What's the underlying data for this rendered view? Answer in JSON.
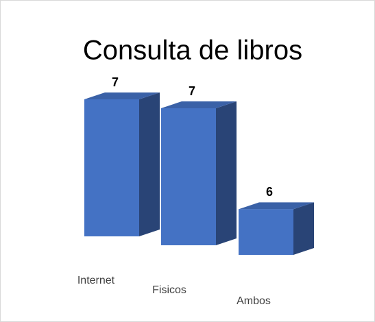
{
  "chart_data": {
    "type": "bar3d",
    "title": "Consulta de libros",
    "categories": [
      "Internet",
      "Fisicos",
      "Ambos"
    ],
    "values": [
      7,
      7,
      6
    ],
    "color": "#4472c4",
    "ylim": [
      5.5,
      7
    ]
  }
}
